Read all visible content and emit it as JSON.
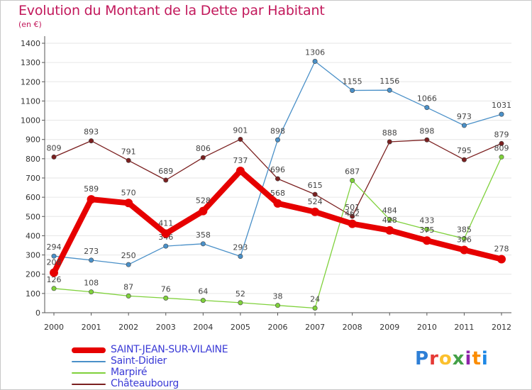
{
  "title": "Evolution du Montant de la Dette par Habitant",
  "unit": "(en €)",
  "logo": [
    "P",
    "r",
    "o",
    "x",
    "i",
    "t",
    "i"
  ],
  "logo_colors": [
    "#2e7fd6",
    "#e53935",
    "#fbc02d",
    "#43a047",
    "#8e24aa",
    "#fb8c00",
    "#1e88e5"
  ],
  "chart_data": {
    "type": "line",
    "x": [
      "2000",
      "2001",
      "2002",
      "2003",
      "2004",
      "2005",
      "2006",
      "2007",
      "2008",
      "2009",
      "2010",
      "2011",
      "2012"
    ],
    "yticks": [
      0,
      100,
      200,
      300,
      400,
      500,
      600,
      700,
      800,
      900,
      1000,
      1100,
      1200,
      1300,
      1400
    ],
    "ylim": [
      0,
      1400
    ],
    "grid": "horizontal",
    "legend_position": "bottom",
    "series": [
      {
        "name": "Châteaubourg",
        "color": "#7b2020",
        "values": [
          809,
          893,
          791,
          689,
          806,
          901,
          696,
          615,
          501,
          888,
          898,
          795,
          879
        ]
      },
      {
        "name": "Marpiré",
        "color": "#7fd13b",
        "values": [
          126,
          108,
          87,
          76,
          64,
          52,
          38,
          24,
          687,
          484,
          433,
          385,
          809
        ]
      },
      {
        "name": "Saint-Didier",
        "color": "#4a90c8",
        "values": [
          294,
          273,
          250,
          346,
          358,
          293,
          898,
          1306,
          1155,
          1156,
          1066,
          973,
          1031
        ]
      },
      {
        "name": "SAINT-JEAN-SUR-VILAINE",
        "color": "#e60000",
        "values": [
          208,
          589,
          570,
          411,
          528,
          737,
          568,
          524,
          462,
          428,
          375,
          326,
          278
        ]
      }
    ]
  },
  "legend": [
    {
      "label": "SAINT-JEAN-SUR-VILAINE",
      "color": "#e60000",
      "thickness": 8
    },
    {
      "label": "Saint-Didier",
      "color": "#4a90c8",
      "thickness": 2
    },
    {
      "label": "Marpiré",
      "color": "#7fd13b",
      "thickness": 2
    },
    {
      "label": "Châteaubourg",
      "color": "#7b2020",
      "thickness": 2
    }
  ]
}
